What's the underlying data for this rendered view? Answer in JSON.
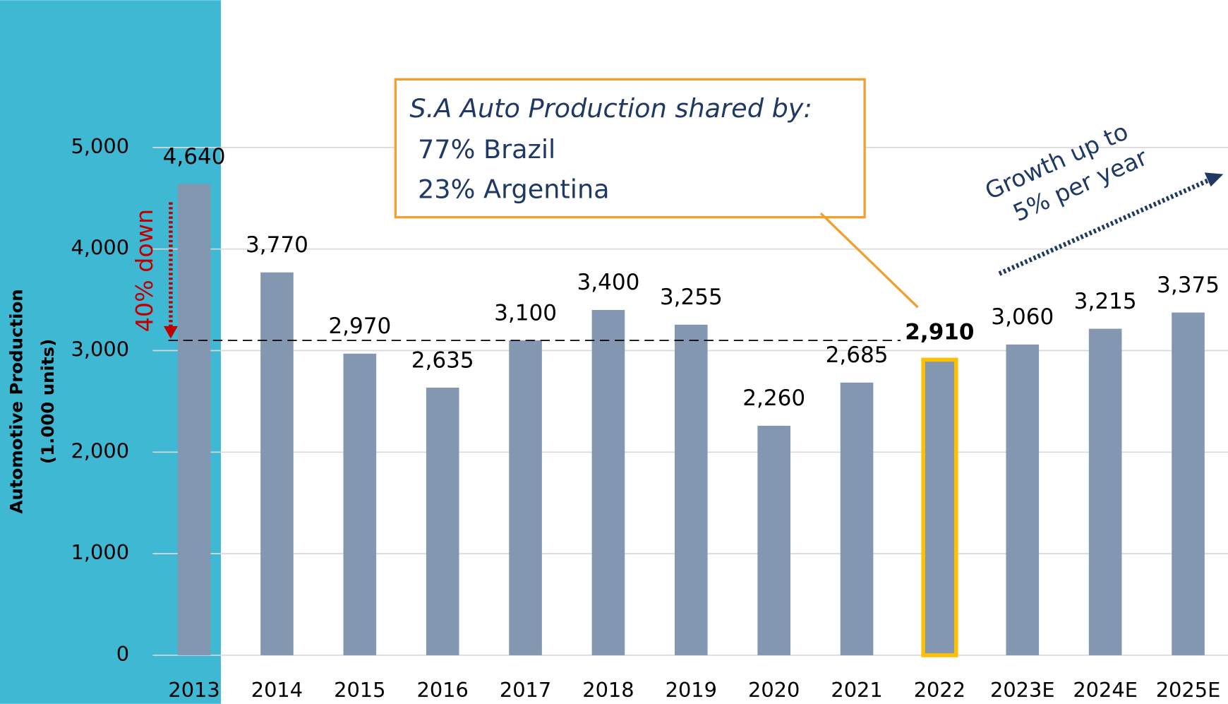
{
  "chart_data": {
    "type": "bar",
    "categories": [
      "2013",
      "2014",
      "2015",
      "2016",
      "2017",
      "2018",
      "2019",
      "2020",
      "2021",
      "2022",
      "2023E",
      "2024E",
      "2025E"
    ],
    "values": [
      4640,
      3770,
      2970,
      2635,
      3100,
      3400,
      3255,
      2260,
      2685,
      2910,
      3060,
      3215,
      3375
    ],
    "value_labels": [
      "4,640",
      "3,770",
      "2,970",
      "2,635",
      "3,100",
      "3,400",
      "3,255",
      "2,260",
      "2,685",
      "2,910",
      "3,060",
      "3,215",
      "3,375"
    ],
    "color": "#8497b0",
    "highlight_index": 9,
    "highlight_color": "#ffc000",
    "ylabel": [
      "Automotive Production",
      "(1.000 units)"
    ],
    "ylim": [
      0,
      5000
    ],
    "yticks": [
      0,
      {
        "value": 1000,
        "label": "1,000"
      },
      {
        "value": 2000,
        "label": "2,000"
      },
      {
        "value": 3000,
        "label": "3,000"
      },
      {
        "value": 4000,
        "label": "4,000"
      },
      {
        "value": 5000,
        "label": "5,000"
      }
    ],
    "grid": true,
    "reference_line": 3100,
    "annotations": {
      "callout": [
        "S.A Auto Production shared by:",
        " 77% Brazil",
        " 23% Argentina"
      ],
      "decline": "40% down",
      "growth": [
        "Growth up to",
        "5% per year"
      ]
    }
  }
}
